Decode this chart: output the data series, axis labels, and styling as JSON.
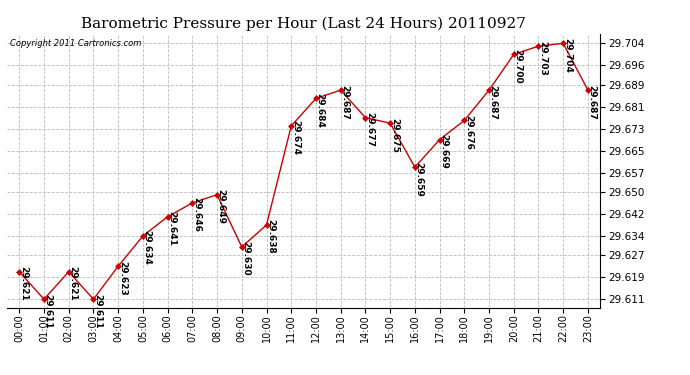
{
  "title": "Barometric Pressure per Hour (Last 24 Hours) 20110927",
  "copyright": "Copyright 2011 Cartronics.com",
  "hours": [
    "00:00",
    "01:00",
    "02:00",
    "03:00",
    "04:00",
    "05:00",
    "06:00",
    "07:00",
    "08:00",
    "09:00",
    "10:00",
    "11:00",
    "12:00",
    "13:00",
    "14:00",
    "15:00",
    "16:00",
    "17:00",
    "18:00",
    "19:00",
    "20:00",
    "21:00",
    "22:00",
    "23:00"
  ],
  "values": [
    29.621,
    29.611,
    29.621,
    29.611,
    29.623,
    29.634,
    29.641,
    29.646,
    29.649,
    29.63,
    29.638,
    29.674,
    29.684,
    29.687,
    29.677,
    29.675,
    29.659,
    29.669,
    29.676,
    29.687,
    29.7,
    29.703,
    29.704,
    29.687
  ],
  "line_color": "#cc0000",
  "marker_color": "#cc0000",
  "bg_color": "#ffffff",
  "grid_color": "#bbbbbb",
  "title_fontsize": 11,
  "label_fontsize": 6.5,
  "ytick_fontsize": 7.5,
  "xtick_fontsize": 7,
  "ylim": [
    29.608,
    29.7075
  ],
  "yticks": [
    29.611,
    29.619,
    29.627,
    29.634,
    29.642,
    29.65,
    29.657,
    29.665,
    29.673,
    29.681,
    29.689,
    29.696,
    29.704
  ]
}
